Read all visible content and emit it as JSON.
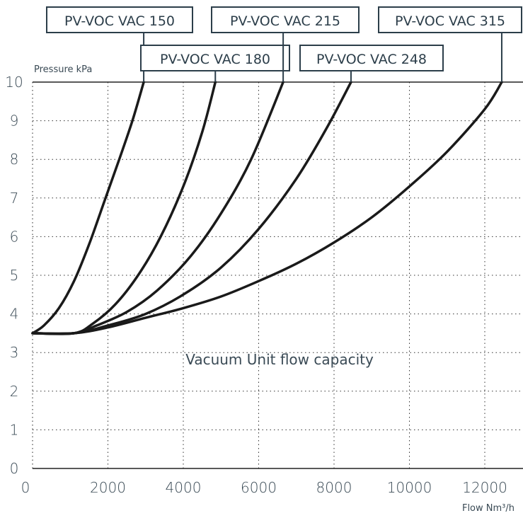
{
  "chart_data": {
    "type": "line",
    "ylabel": "Pressure kPa",
    "xlabel": "Flow Nm³/h",
    "annotation": "Vacuum Unit flow capacity",
    "xlim": [
      0,
      13000
    ],
    "ylim": [
      0,
      10
    ],
    "x_ticks": [
      0,
      2000,
      4000,
      6000,
      8000,
      10000,
      12000
    ],
    "y_ticks": [
      0,
      1,
      2,
      3,
      4,
      5,
      6,
      7,
      8,
      9,
      10
    ],
    "grid": true,
    "series": [
      {
        "name": "PV-VOC VAC 150",
        "x": [
          0,
          300,
          700,
          1100,
          1500,
          1900,
          2300,
          2650,
          2950
        ],
        "y": [
          3.5,
          3.7,
          4.15,
          4.85,
          5.8,
          6.9,
          8.0,
          9.0,
          10.0
        ]
      },
      {
        "name": "PV-VOC VAC 180",
        "x": [
          0,
          1100,
          1600,
          2200,
          2800,
          3400,
          4000,
          4500,
          4850
        ],
        "y": [
          3.5,
          3.5,
          3.75,
          4.25,
          5.0,
          6.0,
          7.3,
          8.7,
          10.0
        ]
      },
      {
        "name": "PV-VOC VAC 215",
        "x": [
          0,
          1100,
          1700,
          2500,
          3300,
          4200,
          5000,
          5800,
          6650
        ],
        "y": [
          3.5,
          3.5,
          3.7,
          4.05,
          4.6,
          5.5,
          6.6,
          8.0,
          10.0
        ]
      },
      {
        "name": "PV-VOC VAC 248",
        "x": [
          0,
          1100,
          2000,
          3000,
          4000,
          5000,
          6000,
          7000,
          7800,
          8450
        ],
        "y": [
          3.5,
          3.5,
          3.7,
          4.0,
          4.5,
          5.2,
          6.2,
          7.5,
          8.8,
          10.0
        ]
      },
      {
        "name": "PV-VOC VAC 315",
        "x": [
          0,
          1100,
          2000,
          3000,
          4000,
          5000,
          6000,
          7000,
          8000,
          9000,
          10000,
          11000,
          12000,
          12450
        ],
        "y": [
          3.5,
          3.5,
          3.65,
          3.9,
          4.15,
          4.45,
          4.85,
          5.3,
          5.85,
          6.5,
          7.3,
          8.2,
          9.3,
          10.0
        ]
      }
    ]
  }
}
